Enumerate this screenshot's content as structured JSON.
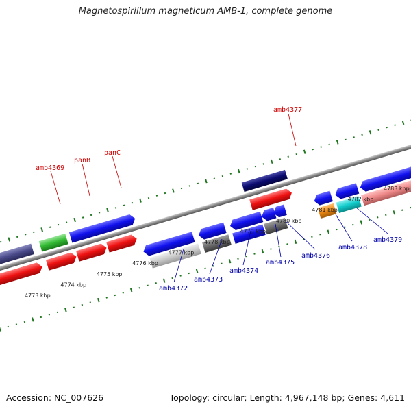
{
  "title": "Magnetospirillum magneticum AMB-1, complete genome",
  "footer": {
    "accession": "Accession: NC_007626",
    "topology": "Topology: circular; Length: 4,967,148 bp; Genes: 4,611"
  },
  "scale_ticks": [
    "4773 kbp",
    "4774 kbp",
    "4775 kbp",
    "4776 kbp",
    "4777 kbp",
    "4778 kbp",
    "4779 kbp",
    "4780 kbp",
    "4781 kbp",
    "4782 kbp",
    "4783 kbp"
  ],
  "top_labels": [
    "amb4369",
    "panB",
    "panC",
    "amb4377"
  ],
  "bottom_labels": [
    "amb4372",
    "amb4373",
    "amb4374",
    "amb4375",
    "amb4376",
    "amb4378",
    "amb4379"
  ],
  "colors": {
    "blue": "#1010ee",
    "red": "#ee1111",
    "green": "#33bb33",
    "navy": "#0a0a70",
    "purple": "#4a4a8a",
    "gray_light": "#c8c8c8",
    "gray_dark": "#6a6a6a",
    "orange": "#ee8811",
    "cyan": "#11cccc",
    "pink": "#ee8888",
    "tick_green": "#227722",
    "backbone": "#888888"
  }
}
